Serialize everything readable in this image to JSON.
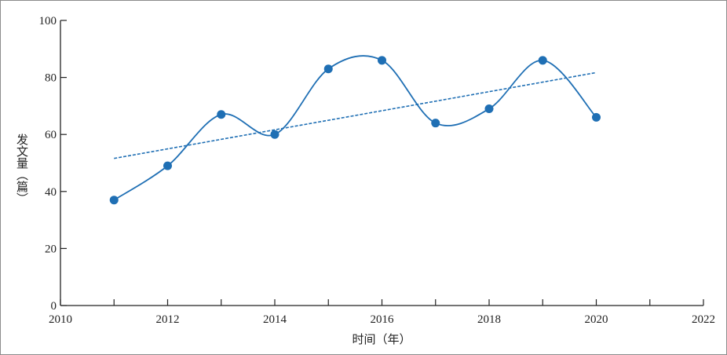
{
  "chart_data": {
    "type": "line",
    "title": "",
    "xlabel": "时间（年）",
    "ylabel": "发文量（篇）",
    "xlim": [
      2010,
      2022
    ],
    "ylim": [
      0,
      100
    ],
    "x_ticks": [
      2010,
      2012,
      2014,
      2016,
      2018,
      2020,
      2022
    ],
    "x_minor_ticks": [
      2011,
      2013,
      2015,
      2017,
      2019,
      2021
    ],
    "y_ticks": [
      0,
      20,
      40,
      60,
      80,
      100
    ],
    "grid": false,
    "legend": "none",
    "series": [
      {
        "style": "smooth-line-with-markers",
        "color": "#1f6fb4",
        "x": [
          2011,
          2012,
          2013,
          2014,
          2015,
          2016,
          2017,
          2018,
          2019,
          2020
        ],
        "y": [
          37,
          49,
          67,
          60,
          83,
          86,
          64,
          69,
          86,
          66
        ]
      },
      {
        "style": "dashed-trendline",
        "color": "#1f6fb4",
        "x": [
          2011,
          2020
        ],
        "y": [
          51.6,
          81.7
        ]
      }
    ]
  }
}
